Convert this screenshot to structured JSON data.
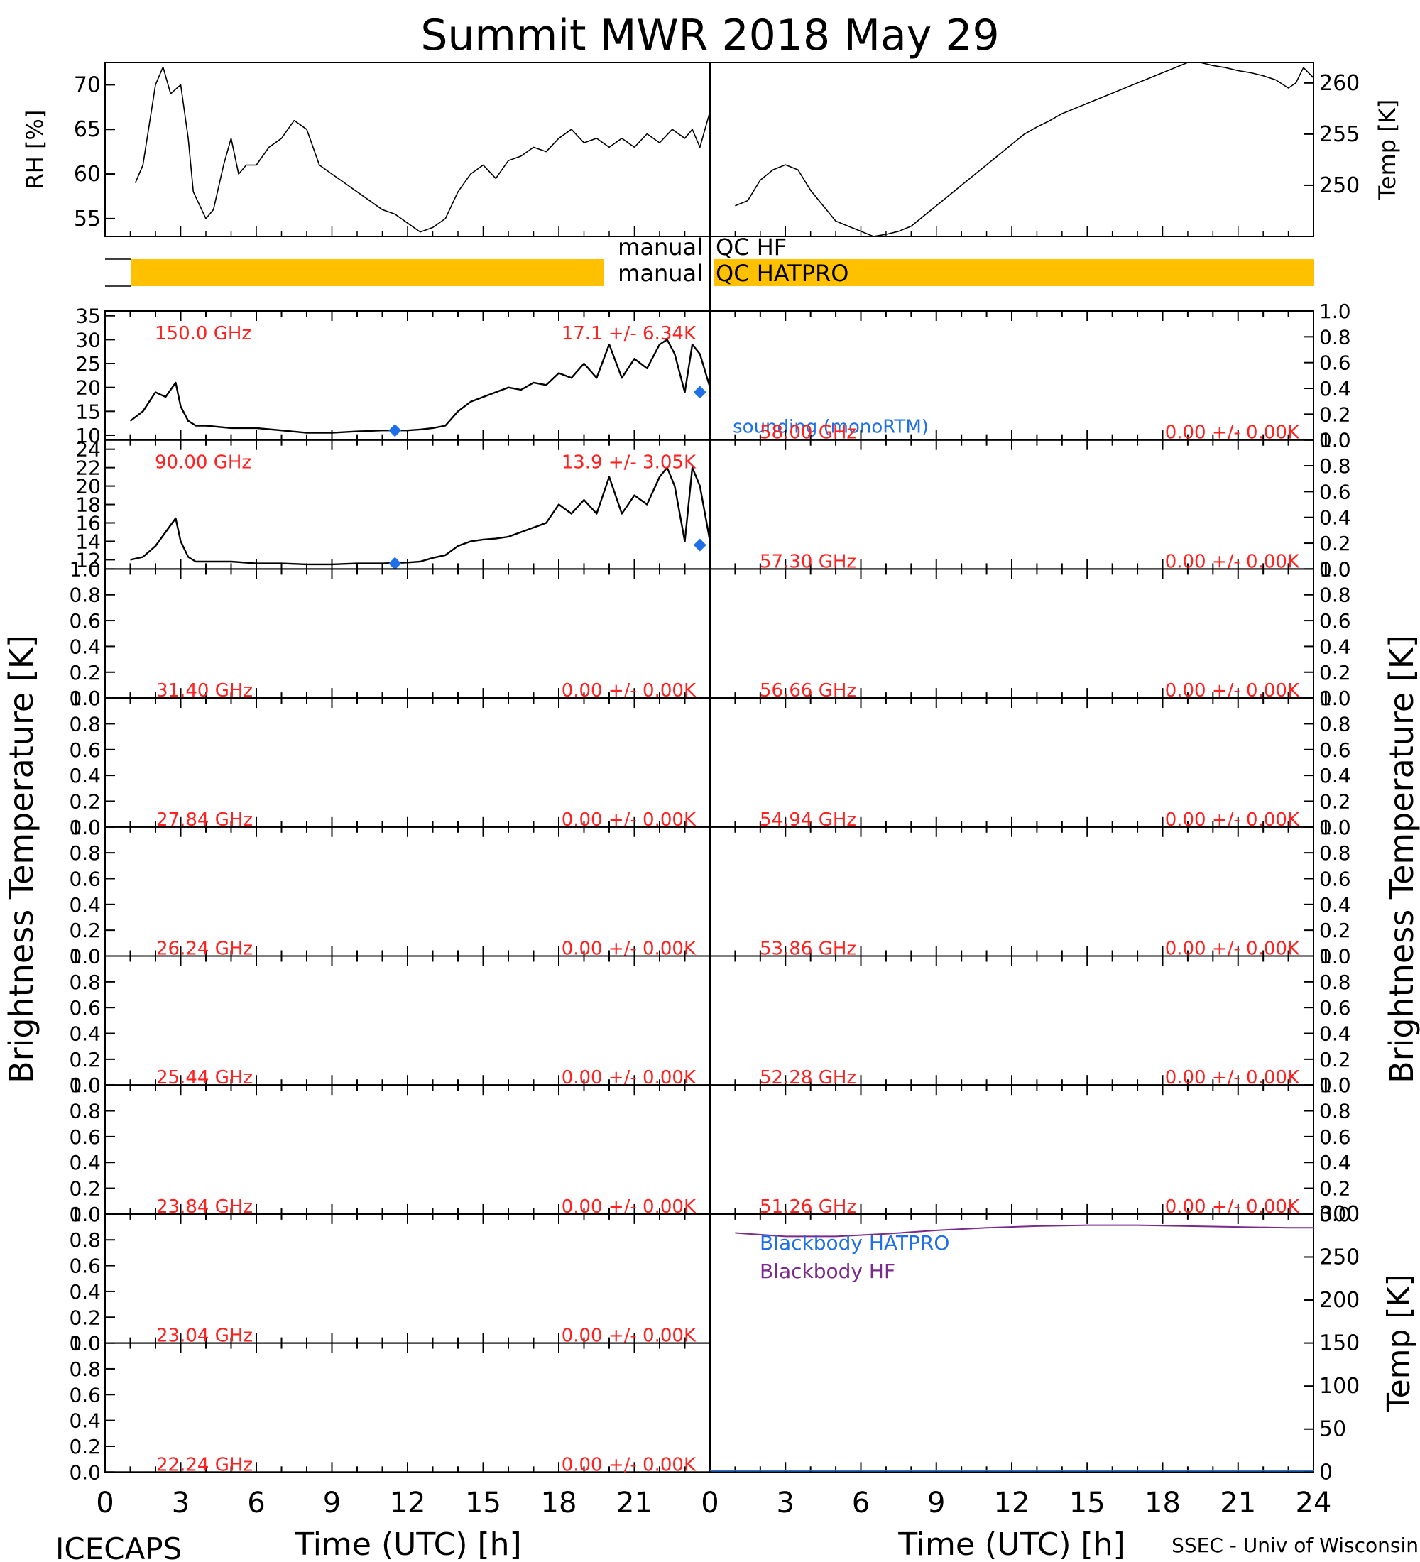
{
  "figure": {
    "title": "Summit MWR 2018 May 29",
    "left_ylabel": "Brightness Temperature [K]",
    "right_ylabel": "Brightness Temperature [K]",
    "xlabel": "Time (UTC) [h]",
    "footer_left": "ICECAPS",
    "footer_right": "SSEC - Univ of Wisconsin",
    "x_ticks": [
      "0",
      "3",
      "6",
      "9",
      "12",
      "15",
      "18",
      "21",
      "24"
    ],
    "colors": {
      "qc_bar": "#ffc000",
      "channel_label": "#ff2020",
      "sounding": "#1e6fe8",
      "blackbody_hf": "#7a2a8a",
      "blackbody_hatpro": "#1e6fe8",
      "data": "#000000"
    }
  },
  "qc": {
    "hf_label": "manual",
    "hf_title": "QC HF",
    "hatpro_label": "manual",
    "hatpro_title": "QC HATPRO"
  },
  "chart_data": [
    {
      "id": "rh",
      "type": "line",
      "ylabel": "RH [%]",
      "ylim": [
        53,
        72.5
      ],
      "xlim": [
        0,
        24
      ],
      "yticks": [
        55,
        60,
        65,
        70
      ],
      "x": [
        1.2,
        1.5,
        2.0,
        2.3,
        2.6,
        3.0,
        3.3,
        3.5,
        4.0,
        4.3,
        4.7,
        5.0,
        5.3,
        5.6,
        6.0,
        6.5,
        7.0,
        7.5,
        8.0,
        8.5,
        9.0,
        9.5,
        10.0,
        10.5,
        11.0,
        11.5,
        12.0,
        12.5,
        13.0,
        13.5,
        14.0,
        14.5,
        15.0,
        15.5,
        16.0,
        16.5,
        17.0,
        17.5,
        18.0,
        18.5,
        19.0,
        19.5,
        20.0,
        20.5,
        21.0,
        21.5,
        22.0,
        22.5,
        23.0,
        23.3,
        23.6,
        24.0
      ],
      "y": [
        59,
        61,
        70,
        72,
        69,
        70,
        64,
        58,
        55,
        56,
        61,
        64,
        60,
        61,
        61,
        63,
        64,
        66,
        65,
        61,
        60,
        59,
        58,
        57,
        56,
        55.5,
        54.5,
        53.5,
        54,
        55,
        58,
        60,
        61,
        59.5,
        61.5,
        62,
        63,
        62.5,
        64,
        65,
        63.5,
        64,
        63,
        64,
        63,
        64.5,
        63.5,
        65,
        64,
        65,
        63,
        67
      ]
    },
    {
      "id": "temp",
      "type": "line",
      "ylabel": "Temp [K]",
      "ylim": [
        245,
        262
      ],
      "xlim": [
        0,
        24
      ],
      "yticks": [
        250,
        255,
        260
      ],
      "x": [
        1.0,
        1.5,
        2.0,
        2.5,
        3.0,
        3.5,
        4.0,
        4.5,
        5.0,
        5.5,
        6.0,
        6.5,
        7.0,
        7.5,
        8.0,
        8.5,
        9.0,
        9.5,
        10.0,
        10.5,
        11.0,
        11.5,
        12.0,
        12.5,
        13.0,
        13.5,
        14.0,
        14.5,
        15.0,
        15.5,
        16.0,
        16.5,
        17.0,
        17.5,
        18.0,
        18.5,
        19.0,
        19.5,
        20.0,
        20.5,
        21.0,
        21.5,
        22.0,
        22.5,
        23.0,
        23.3,
        23.6,
        24.0
      ],
      "y": [
        248,
        248.5,
        250.5,
        251.5,
        252,
        251.5,
        249.5,
        248,
        246.5,
        246,
        245.5,
        245,
        245.2,
        245.5,
        246,
        247,
        248,
        249,
        250,
        251,
        252,
        253,
        254,
        255,
        255.7,
        256.3,
        257,
        257.5,
        258,
        258.5,
        259,
        259.5,
        260,
        260.5,
        261,
        261.5,
        262,
        262,
        261.7,
        261.5,
        261.2,
        261,
        260.7,
        260.3,
        259.5,
        260,
        261.5,
        260.5
      ]
    },
    {
      "id": "tb150",
      "type": "line",
      "channel": "150.0 GHz",
      "stats": "17.1 +/-  6.34K",
      "sounding_label": "sounding (monoRTM)",
      "ylim": [
        9,
        36
      ],
      "yticks": [
        10,
        15,
        20,
        25,
        30,
        35
      ],
      "x": [
        1.0,
        1.5,
        2.0,
        2.4,
        2.8,
        3.0,
        3.3,
        3.6,
        4.0,
        5.0,
        6.0,
        7.0,
        8.0,
        9.0,
        10.0,
        11.0,
        12.0,
        12.5,
        13.0,
        13.5,
        14.0,
        14.5,
        15.0,
        15.5,
        16.0,
        16.5,
        17.0,
        17.5,
        18.0,
        18.5,
        19.0,
        19.5,
        20.0,
        20.5,
        21.0,
        21.5,
        22.0,
        22.3,
        22.6,
        23.0,
        23.3,
        23.6,
        24.0
      ],
      "y": [
        13,
        15,
        19,
        18,
        21,
        16,
        13,
        12,
        12,
        11.5,
        11.5,
        11,
        10.5,
        10.5,
        10.8,
        11,
        11,
        11.2,
        11.5,
        12,
        15,
        17,
        18,
        19,
        20,
        19.5,
        21,
        20.5,
        23,
        22,
        25,
        22,
        29,
        22,
        26,
        24,
        29,
        30,
        27,
        19,
        29,
        27,
        20
      ],
      "sounding_x": [
        11.5,
        23.6
      ],
      "sounding_y": [
        11,
        19
      ]
    },
    {
      "id": "tb90",
      "type": "line",
      "channel": "90.00 GHz",
      "stats": "13.9 +/-  3.05K",
      "ylim": [
        11,
        25
      ],
      "yticks": [
        12,
        14,
        16,
        18,
        20,
        22,
        24
      ],
      "x": [
        1.0,
        1.5,
        2.0,
        2.4,
        2.8,
        3.0,
        3.3,
        3.6,
        4.0,
        5.0,
        6.0,
        7.0,
        8.0,
        9.0,
        10.0,
        11.0,
        12.0,
        12.5,
        13.0,
        13.5,
        14.0,
        14.5,
        15.0,
        15.5,
        16.0,
        16.5,
        17.0,
        17.5,
        18.0,
        18.5,
        19.0,
        19.5,
        20.0,
        20.5,
        21.0,
        21.5,
        22.0,
        22.3,
        22.6,
        23.0,
        23.3,
        23.6,
        24.0
      ],
      "y": [
        12,
        12.3,
        13.5,
        15,
        16.5,
        14,
        12.3,
        11.8,
        11.8,
        11.8,
        11.6,
        11.6,
        11.5,
        11.5,
        11.6,
        11.6,
        11.7,
        11.8,
        12.2,
        12.5,
        13.5,
        14,
        14.2,
        14.3,
        14.5,
        15,
        15.5,
        16,
        18,
        17,
        18.5,
        17,
        21,
        17,
        19,
        18,
        21,
        22,
        20,
        14,
        22,
        20,
        14
      ],
      "sounding_x": [
        11.5,
        23.6
      ],
      "sounding_y": [
        11.6,
        13.6
      ]
    },
    {
      "id": "tb3140",
      "type": "line",
      "channel": "31.40 GHz",
      "stats": "0.00 +/-  0.00K",
      "ylim": [
        0,
        1
      ],
      "yticks": [
        "0.0",
        "0.2",
        "0.4",
        "0.6",
        "0.8",
        "1.0"
      ]
    },
    {
      "id": "tb2784",
      "type": "line",
      "channel": "27.84 GHz",
      "stats": "0.00 +/-  0.00K",
      "ylim": [
        0,
        1
      ],
      "yticks": [
        "0.0",
        "0.2",
        "0.4",
        "0.6",
        "0.8",
        "1.0"
      ]
    },
    {
      "id": "tb2624",
      "type": "line",
      "channel": "26.24 GHz",
      "stats": "0.00 +/-  0.00K",
      "ylim": [
        0,
        1
      ],
      "yticks": [
        "0.0",
        "0.2",
        "0.4",
        "0.6",
        "0.8",
        "1.0"
      ]
    },
    {
      "id": "tb2544",
      "type": "line",
      "channel": "25.44 GHz",
      "stats": "0.00 +/-  0.00K",
      "ylim": [
        0,
        1
      ],
      "yticks": [
        "0.0",
        "0.2",
        "0.4",
        "0.6",
        "0.8",
        "1.0"
      ]
    },
    {
      "id": "tb2384",
      "type": "line",
      "channel": "23.84 GHz",
      "stats": "0.00 +/-  0.00K",
      "ylim": [
        0,
        1
      ],
      "yticks": [
        "0.0",
        "0.2",
        "0.4",
        "0.6",
        "0.8",
        "1.0"
      ]
    },
    {
      "id": "tb2304",
      "type": "line",
      "channel": "23.04 GHz",
      "stats": "0.00 +/-  0.00K",
      "ylim": [
        0,
        1
      ],
      "yticks": [
        "0.0",
        "0.2",
        "0.4",
        "0.6",
        "0.8",
        "1.0"
      ]
    },
    {
      "id": "tb2224",
      "type": "line",
      "channel": "22.24 GHz",
      "stats": "0.00 +/-  0.00K",
      "ylim": [
        0,
        1
      ],
      "yticks": [
        "0.0",
        "0.2",
        "0.4",
        "0.6",
        "0.8",
        "1.0"
      ]
    },
    {
      "id": "tb5800",
      "type": "line",
      "channel": "58.00 GHz",
      "stats": "0.00 +/-  0.00K",
      "ylim": [
        0,
        1
      ],
      "yticks": [
        "0.0",
        "0.2",
        "0.4",
        "0.6",
        "0.8",
        "1.0"
      ]
    },
    {
      "id": "tb5730",
      "type": "line",
      "channel": "57.30 GHz",
      "stats": "0.00 +/-  0.00K",
      "ylim": [
        0,
        1
      ],
      "yticks": [
        "0.0",
        "0.2",
        "0.4",
        "0.6",
        "0.8",
        "1.0"
      ]
    },
    {
      "id": "tb5666",
      "type": "line",
      "channel": "56.66 GHz",
      "stats": "0.00 +/-  0.00K",
      "ylim": [
        0,
        1
      ],
      "yticks": [
        "0.0",
        "0.2",
        "0.4",
        "0.6",
        "0.8",
        "1.0"
      ]
    },
    {
      "id": "tb5494",
      "type": "line",
      "channel": "54.94 GHz",
      "stats": "0.00 +/-  0.00K",
      "ylim": [
        0,
        1
      ],
      "yticks": [
        "0.0",
        "0.2",
        "0.4",
        "0.6",
        "0.8",
        "1.0"
      ]
    },
    {
      "id": "tb5386",
      "type": "line",
      "channel": "53.86 GHz",
      "stats": "0.00 +/-  0.00K",
      "ylim": [
        0,
        1
      ],
      "yticks": [
        "0.0",
        "0.2",
        "0.4",
        "0.6",
        "0.8",
        "1.0"
      ]
    },
    {
      "id": "tb5228",
      "type": "line",
      "channel": "52.28 GHz",
      "stats": "0.00 +/-  0.00K",
      "ylim": [
        0,
        1
      ],
      "yticks": [
        "0.0",
        "0.2",
        "0.4",
        "0.6",
        "0.8",
        "1.0"
      ]
    },
    {
      "id": "tb5126",
      "type": "line",
      "channel": "51.26 GHz",
      "stats": "0.00 +/-  0.00K",
      "ylim": [
        0,
        1
      ],
      "yticks": [
        "0.0",
        "0.2",
        "0.4",
        "0.6",
        "0.8",
        "1.0"
      ]
    },
    {
      "id": "blackbody",
      "type": "line",
      "ylabel": "Temp [K]",
      "ylim": [
        0,
        300
      ],
      "yticks": [
        0,
        50,
        100,
        150,
        200,
        250,
        300
      ],
      "legend": [
        "Blackbody HATPRO",
        "Blackbody HF"
      ],
      "series": [
        {
          "name": "Blackbody HF",
          "x": [
            1,
            3,
            5,
            7,
            9,
            11,
            13,
            15,
            17,
            19,
            21,
            23,
            24
          ],
          "y": [
            278,
            274,
            274,
            277,
            281,
            284,
            286,
            287,
            287,
            286,
            285,
            284,
            284
          ]
        }
      ]
    }
  ]
}
